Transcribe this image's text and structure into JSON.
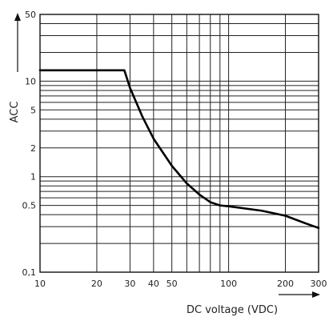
{
  "chart_data": {
    "type": "line",
    "xlabel": "DC voltage (VDC)",
    "ylabel": "ACC",
    "x_scale": "log",
    "y_scale": "log",
    "xlim": [
      10,
      300
    ],
    "ylim": [
      0.1,
      50
    ],
    "grid": true,
    "x_ticks": [
      {
        "value": 10,
        "label": "10"
      },
      {
        "value": 20,
        "label": "20"
      },
      {
        "value": 30,
        "label": "30"
      },
      {
        "value": 40,
        "label": "40"
      },
      {
        "value": 50,
        "label": "50"
      },
      {
        "value": 100,
        "label": "100"
      },
      {
        "value": 200,
        "label": "200"
      },
      {
        "value": 300,
        "label": "300"
      }
    ],
    "y_ticks": [
      {
        "value": 0.1,
        "label": "0,1"
      },
      {
        "value": 0.5,
        "label": "0.5"
      },
      {
        "value": 1,
        "label": "1"
      },
      {
        "value": 2,
        "label": "2"
      },
      {
        "value": 5,
        "label": "5"
      },
      {
        "value": 10,
        "label": "10"
      },
      {
        "value": 50,
        "label": "50"
      }
    ],
    "series": [
      {
        "x": [
          10,
          20,
          28,
          30,
          35,
          40,
          50,
          60,
          70,
          80,
          90,
          100,
          150,
          200,
          250,
          300
        ],
        "y": [
          13,
          13,
          13,
          8.5,
          4.2,
          2.5,
          1.3,
          0.85,
          0.65,
          0.54,
          0.5,
          0.49,
          0.44,
          0.39,
          0.33,
          0.29
        ]
      }
    ]
  }
}
